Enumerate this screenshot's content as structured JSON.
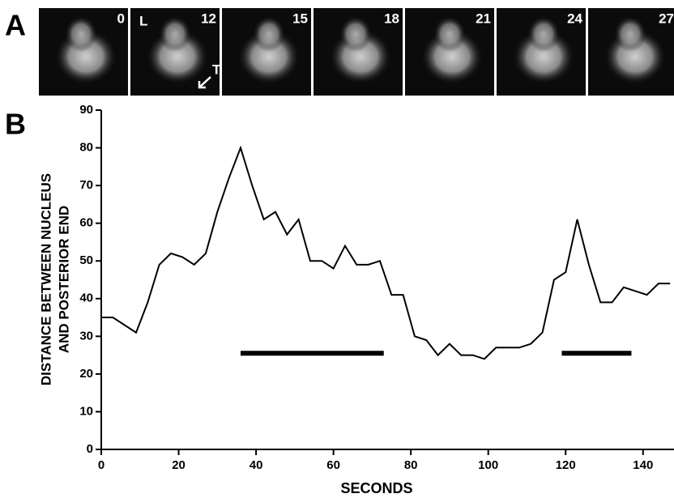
{
  "panel_a": {
    "label": "A",
    "frames": [
      "0",
      "12",
      "15",
      "18",
      "21",
      "24",
      "27"
    ],
    "annotations": [
      "L",
      "T"
    ]
  },
  "panel_b": {
    "label": "B"
  },
  "chart_data": {
    "type": "line",
    "xlabel": "SECONDS",
    "ylabel": [
      "DISTANCE BETWEEN NUCLEUS",
      "AND POSTERIOR END"
    ],
    "x": [
      0,
      3,
      9,
      12,
      15,
      18,
      21,
      24,
      27,
      30,
      33,
      36,
      39,
      42,
      45,
      48,
      51,
      54,
      57,
      60,
      63,
      66,
      69,
      72,
      75,
      78,
      81,
      84,
      87,
      90,
      93,
      96,
      99,
      102,
      105,
      108,
      111,
      114,
      117,
      120,
      123,
      126,
      129,
      132,
      135,
      138,
      141,
      144,
      147
    ],
    "values": [
      35,
      35,
      31,
      39,
      49,
      52,
      51,
      49,
      52,
      63,
      72,
      80,
      70,
      61,
      63,
      57,
      61,
      50,
      50,
      48,
      54,
      49,
      49,
      50,
      41,
      41,
      30,
      29,
      25,
      28,
      25,
      25,
      24,
      27,
      27,
      27,
      28,
      31,
      45,
      47,
      61,
      49,
      39,
      39,
      43,
      42,
      41,
      44,
      44
    ],
    "color": "#000000",
    "intervals": [
      {
        "start": 36,
        "end": 73,
        "y": 25.5
      },
      {
        "start": 119,
        "end": 137,
        "y": 25.5
      }
    ],
    "xlim": [
      0,
      148
    ],
    "xticks": [
      0,
      20,
      40,
      60,
      80,
      100,
      120,
      140
    ],
    "ylim": [
      0,
      90
    ],
    "yticks": [
      0,
      10,
      20,
      30,
      40,
      50,
      60,
      70,
      80,
      90
    ]
  }
}
